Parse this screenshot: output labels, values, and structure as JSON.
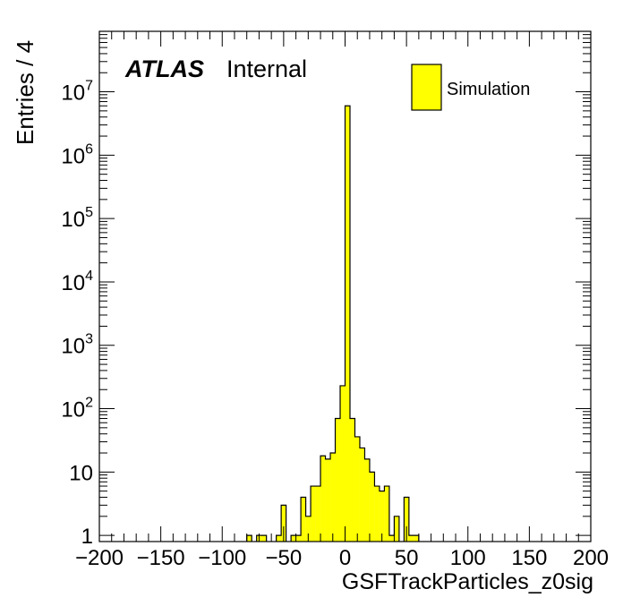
{
  "chart_data": {
    "type": "bar",
    "subtype": "histogram",
    "ylabel": "Entries / 4",
    "xlabel": "GSFTrackParticles_z0sig",
    "yscale": "log",
    "xlim": [
      -200,
      200
    ],
    "ylim": [
      0.8,
      90000000
    ],
    "bin_width": 4,
    "x_ticks": [
      "−200",
      "−150",
      "−100",
      "−50",
      "0",
      "50",
      "100",
      "150",
      "200"
    ],
    "y_ticks": [
      {
        "base": "1",
        "exp": ""
      },
      {
        "base": "10",
        "exp": ""
      },
      {
        "base": "10",
        "exp": "2"
      },
      {
        "base": "10",
        "exp": "3"
      },
      {
        "base": "10",
        "exp": "4"
      },
      {
        "base": "10",
        "exp": "5"
      },
      {
        "base": "10",
        "exp": "6"
      },
      {
        "base": "10",
        "exp": "7"
      }
    ],
    "atlas_label": "ATLAS",
    "atlas_status": "Internal",
    "legend_position": "top-right",
    "series": [
      {
        "name": "Simulation",
        "color": "#ffff00",
        "edge_color": "#000000",
        "bins": [
          {
            "low": -80,
            "high": -76,
            "value": 1
          },
          {
            "low": -72,
            "high": -68,
            "value": 1
          },
          {
            "low": -68,
            "high": -64,
            "value": 1
          },
          {
            "low": -56,
            "high": -52,
            "value": 1
          },
          {
            "low": -52,
            "high": -48,
            "value": 3
          },
          {
            "low": -44,
            "high": -40,
            "value": 1
          },
          {
            "low": -40,
            "high": -36,
            "value": 1
          },
          {
            "low": -36,
            "high": -32,
            "value": 4
          },
          {
            "low": -32,
            "high": -28,
            "value": 2
          },
          {
            "low": -28,
            "high": -24,
            "value": 6
          },
          {
            "low": -24,
            "high": -20,
            "value": 6
          },
          {
            "low": -20,
            "high": -16,
            "value": 18
          },
          {
            "low": -16,
            "high": -12,
            "value": 16
          },
          {
            "low": -12,
            "high": -8,
            "value": 20
          },
          {
            "low": -8,
            "high": -4,
            "value": 70
          },
          {
            "low": -4,
            "high": 0,
            "value": 230
          },
          {
            "low": 0,
            "high": 4,
            "value": 6000000
          },
          {
            "low": 4,
            "high": 8,
            "value": 70
          },
          {
            "low": 8,
            "high": 12,
            "value": 36
          },
          {
            "low": 12,
            "high": 16,
            "value": 24
          },
          {
            "low": 16,
            "high": 20,
            "value": 16
          },
          {
            "low": 20,
            "high": 24,
            "value": 10
          },
          {
            "low": 24,
            "high": 28,
            "value": 6
          },
          {
            "low": 28,
            "high": 32,
            "value": 5
          },
          {
            "low": 32,
            "high": 36,
            "value": 6
          },
          {
            "low": 36,
            "high": 40,
            "value": 1
          },
          {
            "low": 40,
            "high": 44,
            "value": 2
          },
          {
            "low": 48,
            "high": 52,
            "value": 4
          },
          {
            "low": 52,
            "high": 56,
            "value": 1
          },
          {
            "low": 56,
            "high": 60,
            "value": 1
          }
        ]
      }
    ]
  }
}
